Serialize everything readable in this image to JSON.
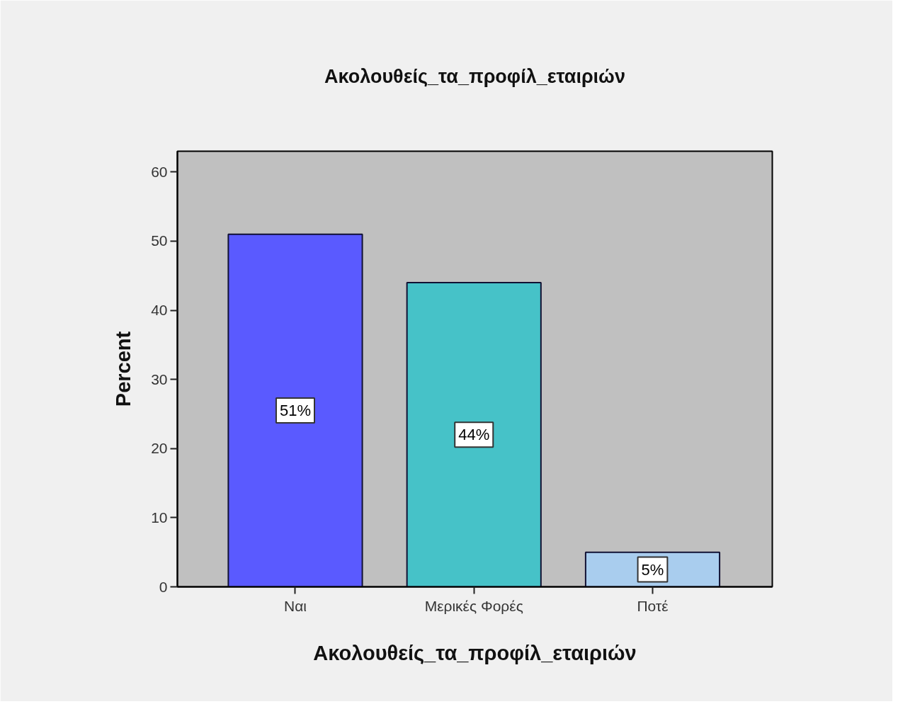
{
  "chart_data": {
    "type": "bar",
    "title": "Ακολουθείς_τα_προφίλ_εταιριών",
    "xlabel": "Ακολουθείς_τα_προφίλ_εταιριών",
    "ylabel": "Percent",
    "categories": [
      "Ναι",
      "Μερικές Φορές",
      "Ποτέ"
    ],
    "values": [
      51,
      44,
      5
    ],
    "colors": [
      "#5a5aff",
      "#46c2c8",
      "#a9cdee"
    ],
    "value_labels": [
      "51%",
      "44%",
      "5%"
    ],
    "ylim": [
      0,
      63
    ],
    "yticks": [
      0,
      10,
      20,
      30,
      40,
      50,
      60
    ]
  }
}
